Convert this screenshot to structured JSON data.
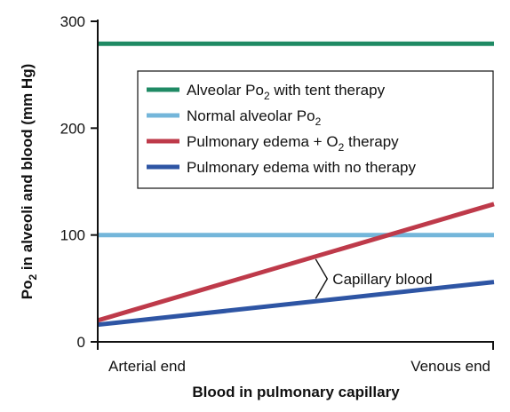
{
  "chart_data": {
    "type": "line",
    "xlabel": "Blood in pulmonary capillary",
    "ylabel": {
      "prefix": "Po",
      "sub": "2",
      "suffix": " in alveoli and blood (mm Hg)"
    },
    "ylim": [
      0,
      300
    ],
    "yticks": [
      0,
      100,
      200,
      300
    ],
    "xlim": [
      0,
      1
    ],
    "categories": [
      "Arterial end",
      "Venous end"
    ],
    "grid": false,
    "legend_position": "upper-center",
    "series": [
      {
        "key": "tent",
        "name": {
          "prefix": "Alveolar Po",
          "sub": "2",
          "suffix": " with tent therapy"
        },
        "color": "#1f8a64",
        "x": [
          0,
          1
        ],
        "y": [
          279,
          279
        ]
      },
      {
        "key": "normal",
        "name": {
          "prefix": "Normal alveolar Po",
          "sub": "2",
          "suffix": ""
        },
        "color": "#74b6da",
        "x": [
          0,
          1
        ],
        "y": [
          100,
          100
        ]
      },
      {
        "key": "edema_o2",
        "name": {
          "prefix": "Pulmonary edema + O",
          "sub": "2",
          "suffix": " therapy"
        },
        "color": "#be3a4a",
        "x": [
          0,
          1
        ],
        "y": [
          20,
          129
        ]
      },
      {
        "key": "edema_none",
        "name": {
          "prefix": "Pulmonary edema with no therapy",
          "sub": "",
          "suffix": ""
        },
        "color": "#2e55a4",
        "x": [
          0,
          1
        ],
        "y": [
          16,
          56
        ]
      }
    ],
    "annotations": [
      {
        "text": "Capillary blood",
        "x": 0.55
      }
    ]
  }
}
